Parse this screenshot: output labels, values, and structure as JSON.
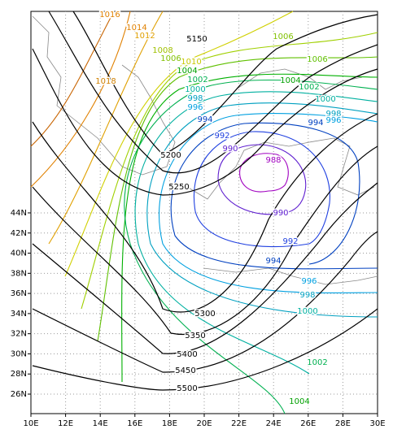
{
  "map": {
    "x_axis_labels": [
      "10E",
      "12E",
      "14E",
      "16E",
      "18E",
      "20E",
      "22E",
      "24E",
      "26E",
      "28E",
      "30E"
    ],
    "y_axis_labels": [
      "26N",
      "28N",
      "30N",
      "32N",
      "34N",
      "36N",
      "38N",
      "40N",
      "42N",
      "44N"
    ],
    "height_labels": [
      5150,
      5200,
      5250,
      5300,
      5350,
      5400,
      5450,
      5500
    ],
    "pressure_labels": [
      1016,
      1014,
      1012,
      1010,
      1008,
      1006,
      1006,
      1006,
      1004,
      1004,
      1002,
      1002,
      1000,
      1000,
      998,
      998,
      996,
      996,
      994,
      994,
      992,
      990,
      988,
      990,
      992,
      994,
      996,
      998,
      1000,
      1002,
      1004,
      1018
    ]
  }
}
